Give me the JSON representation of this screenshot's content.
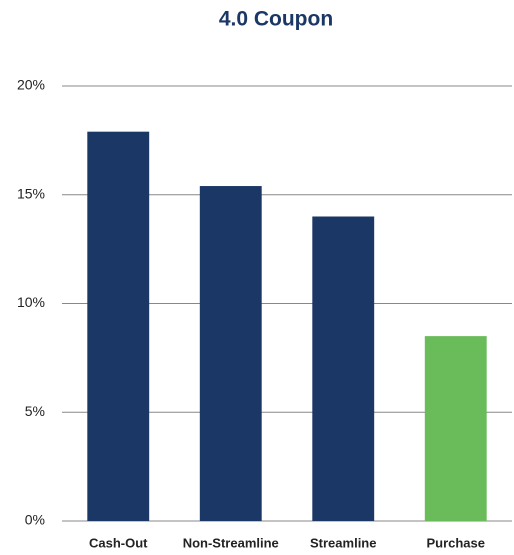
{
  "chart_data": {
    "type": "bar",
    "title": "4.0 Coupon",
    "categories": [
      "Cash-Out",
      "Non-Streamline",
      "Streamline",
      "Purchase"
    ],
    "values": [
      17.9,
      15.4,
      14.0,
      8.5
    ],
    "colors": [
      "#1b3766",
      "#1b3766",
      "#1b3766",
      "#6abb5a"
    ],
    "ylim": [
      0,
      20
    ],
    "yticks": [
      {
        "value": 0,
        "label": "0%"
      },
      {
        "value": 5,
        "label": "5%"
      },
      {
        "value": 10,
        "label": "10%"
      },
      {
        "value": 15,
        "label": "15%"
      },
      {
        "value": 20,
        "label": "20%"
      }
    ],
    "grid": true
  }
}
